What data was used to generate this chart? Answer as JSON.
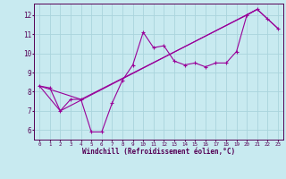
{
  "xlabel": "Windchill (Refroidissement éolien,°C)",
  "background_color": "#c8eaf0",
  "line_color": "#990099",
  "grid_color": "#aad4dc",
  "xlim": [
    -0.5,
    23.5
  ],
  "ylim": [
    5.5,
    12.6
  ],
  "xticks": [
    0,
    1,
    2,
    3,
    4,
    5,
    6,
    7,
    8,
    9,
    10,
    11,
    12,
    13,
    14,
    15,
    16,
    17,
    18,
    19,
    20,
    21,
    22,
    23
  ],
  "yticks": [
    6,
    7,
    8,
    9,
    10,
    11,
    12
  ],
  "series1_x": [
    0,
    1,
    2,
    3,
    4,
    5,
    6,
    7,
    8,
    9,
    10,
    11,
    12,
    13,
    14,
    15,
    16,
    17,
    18,
    19,
    20,
    21,
    22,
    23
  ],
  "series1_y": [
    8.3,
    8.2,
    7.0,
    7.6,
    7.6,
    5.9,
    5.9,
    7.4,
    8.6,
    9.4,
    11.1,
    10.3,
    10.4,
    9.6,
    9.4,
    9.5,
    9.3,
    9.5,
    9.5,
    10.1,
    12.0,
    12.3,
    11.8,
    11.3
  ],
  "series2_x": [
    0,
    2,
    21,
    23
  ],
  "series2_y": [
    8.3,
    7.0,
    12.3,
    11.3
  ],
  "series3_x": [
    0,
    4,
    20,
    21
  ],
  "series3_y": [
    8.3,
    7.6,
    12.0,
    12.3
  ],
  "marker_size": 2.5,
  "line_width": 0.8
}
